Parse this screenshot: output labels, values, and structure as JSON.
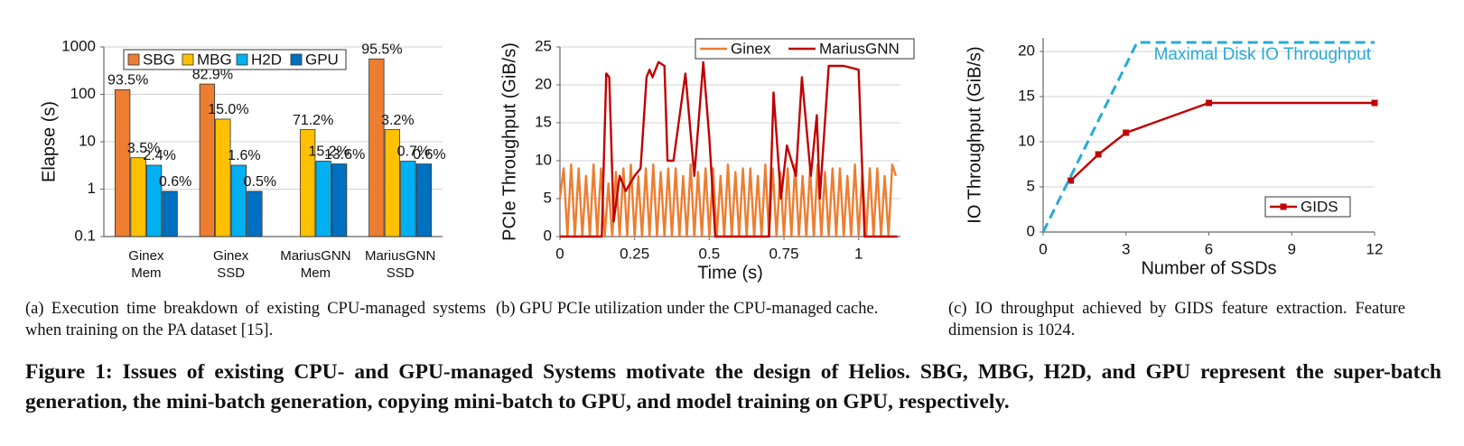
{
  "chart_data": [
    {
      "type": "bar",
      "log_scale": true,
      "grid": true,
      "legend": "upper-center",
      "ylabel": "Elapse (s)",
      "categories": [
        [
          "Ginex",
          "Mem"
        ],
        [
          "Ginex",
          "SSD"
        ],
        [
          "MariusGNN",
          "Mem"
        ],
        [
          "MariusGNN",
          "SSD"
        ]
      ],
      "ylim": [
        0.1,
        1000
      ],
      "yticks": [
        0.1,
        1,
        10,
        100,
        1000
      ],
      "series": [
        {
          "name": "SBG",
          "color": "#ED7D31",
          "values": [
            125,
            165,
            null,
            560
          ],
          "share_labels": [
            "93.5%",
            "82.9%",
            null,
            "95.5%"
          ]
        },
        {
          "name": "MBG",
          "color": "#FFC000",
          "values": [
            4.6,
            30,
            18,
            18
          ],
          "share_labels": [
            "3.5%",
            "15.0%",
            "71.2%",
            "3.2%"
          ]
        },
        {
          "name": "H2D",
          "color": "#00B0F0",
          "values": [
            3.2,
            3.2,
            3.9,
            3.9
          ],
          "share_labels": [
            "2.4%",
            "1.6%",
            "15.2%",
            "0.7%"
          ]
        },
        {
          "name": "GPU",
          "color": "#0070C0",
          "values": [
            0.9,
            0.9,
            3.4,
            3.4
          ],
          "share_labels": [
            "0.6%",
            "0.5%",
            "13.6%",
            "0.6%"
          ]
        }
      ],
      "caption": "(a) Execution time breakdown of existing CPU-managed systems when training on the PA dataset [15]."
    },
    {
      "type": "line",
      "grid": true,
      "legend": "upper-right",
      "xlabel": "Time (s)",
      "ylabel": "PCIe Throughput (GiB/s)",
      "xlim": [
        0,
        1.14
      ],
      "xticks": [
        0,
        0.25,
        0.5,
        0.75,
        1
      ],
      "ylim": [
        0,
        25
      ],
      "yticks": [
        0,
        5,
        10,
        15,
        20,
        25
      ],
      "series": [
        {
          "name": "Ginex",
          "color": "#ED7D31",
          "x": [
            0,
            0.0125,
            0.025,
            0.0375,
            0.05,
            0.0625,
            0.075,
            0.0875,
            0.1,
            0.1125,
            0.125,
            0.1375,
            0.15,
            0.1625,
            0.175,
            0.1875,
            0.2,
            0.2125,
            0.225,
            0.2375,
            0.25,
            0.2625,
            0.275,
            0.2875,
            0.3,
            0.3125,
            0.325,
            0.3375,
            0.35,
            0.3625,
            0.375,
            0.3875,
            0.4,
            0.4125,
            0.425,
            0.4375,
            0.45,
            0.4625,
            0.475,
            0.4875,
            0.5,
            0.5125,
            0.525,
            0.5375,
            0.55,
            0.5625,
            0.575,
            0.5875,
            0.6,
            0.6125,
            0.625,
            0.6375,
            0.65,
            0.6625,
            0.675,
            0.6875,
            0.7,
            0.7125,
            0.725,
            0.7375,
            0.75,
            0.7625,
            0.775,
            0.7875,
            0.8,
            0.8125,
            0.825,
            0.8375,
            0.85,
            0.8625,
            0.875,
            0.8875,
            0.9,
            0.9125,
            0.925,
            0.9375,
            0.95,
            0.9625,
            0.975,
            0.9875,
            1,
            1.0125,
            1.025,
            1.0375,
            1.05,
            1.0625,
            1.075,
            1.0875,
            1.1,
            1.1125,
            1.125
          ],
          "values": [
            5,
            9,
            0,
            9.5,
            0,
            9,
            0,
            8,
            0,
            9.5,
            0,
            9,
            0,
            7,
            0,
            8.5,
            0,
            9,
            0,
            9.5,
            0,
            8,
            0,
            9,
            0,
            9.5,
            0,
            8.5,
            0,
            9,
            0,
            9,
            0,
            8,
            0,
            9.5,
            0,
            8.5,
            0,
            9,
            0,
            9,
            0,
            8,
            0,
            9.5,
            0,
            8.5,
            0,
            9,
            0,
            9,
            0,
            8,
            0,
            9.5,
            0,
            9,
            0,
            8.5,
            0,
            9,
            0,
            9.5,
            0,
            8,
            0,
            9,
            0,
            9.5,
            0,
            8.5,
            0,
            9,
            0,
            9,
            0,
            8,
            0,
            9.5,
            0,
            8.5,
            0,
            9,
            0,
            9,
            0,
            8,
            0,
            9.5,
            8
          ]
        },
        {
          "name": "MariusGNN",
          "color": "#C00000",
          "x": [
            0,
            0.14,
            0.155,
            0.165,
            0.18,
            0.2,
            0.22,
            0.25,
            0.27,
            0.29,
            0.3,
            0.31,
            0.33,
            0.35,
            0.36,
            0.38,
            0.42,
            0.45,
            0.48,
            0.5,
            0.52,
            0.7,
            0.715,
            0.74,
            0.76,
            0.79,
            0.81,
            0.84,
            0.86,
            0.87,
            0.9,
            0.95,
            1.0,
            1.02,
            1.13
          ],
          "values": [
            0,
            0,
            21.5,
            21,
            2,
            8,
            6,
            8,
            9,
            21,
            22,
            21,
            23,
            22.5,
            10,
            10,
            21.5,
            8,
            23,
            13,
            0,
            0,
            19,
            5,
            12,
            8,
            21,
            8,
            16,
            5,
            22.5,
            22.5,
            22,
            0,
            0
          ]
        }
      ],
      "caption": "(b) GPU PCIe utilization under the CPU-managed cache."
    },
    {
      "type": "line",
      "grid": true,
      "legend": "lower-right",
      "xlabel": "Number of SSDs",
      "ylabel": "IO Throughput (GiB/s)",
      "xlim": [
        0,
        12
      ],
      "xticks": [
        0,
        3,
        6,
        9,
        12
      ],
      "ylim": [
        0,
        21.5
      ],
      "yticks": [
        0,
        5,
        10,
        15,
        20
      ],
      "series": [
        {
          "name": "GIDS",
          "color": "#C00000",
          "marker": "square",
          "x": [
            1,
            2,
            3,
            6,
            12
          ],
          "values": [
            5.7,
            8.6,
            11,
            14.3,
            14.3
          ]
        },
        {
          "name": "Maximal Disk IO Throughput",
          "color": "#27A9D8",
          "dashed": true,
          "name_inline": true,
          "x": [
            0,
            3.4,
            12
          ],
          "values": [
            0,
            21,
            21
          ]
        }
      ],
      "caption": "(c) IO throughput achieved by GIDS feature extraction. Feature dimension is 1024."
    }
  ],
  "figure_caption": "Figure 1: Issues of existing CPU- and GPU-managed Systems motivate the design of Helios. SBG, MBG, H2D, and GPU represent the super-batch generation, the mini-batch generation, copying mini-batch to GPU, and model training on GPU, respectively."
}
